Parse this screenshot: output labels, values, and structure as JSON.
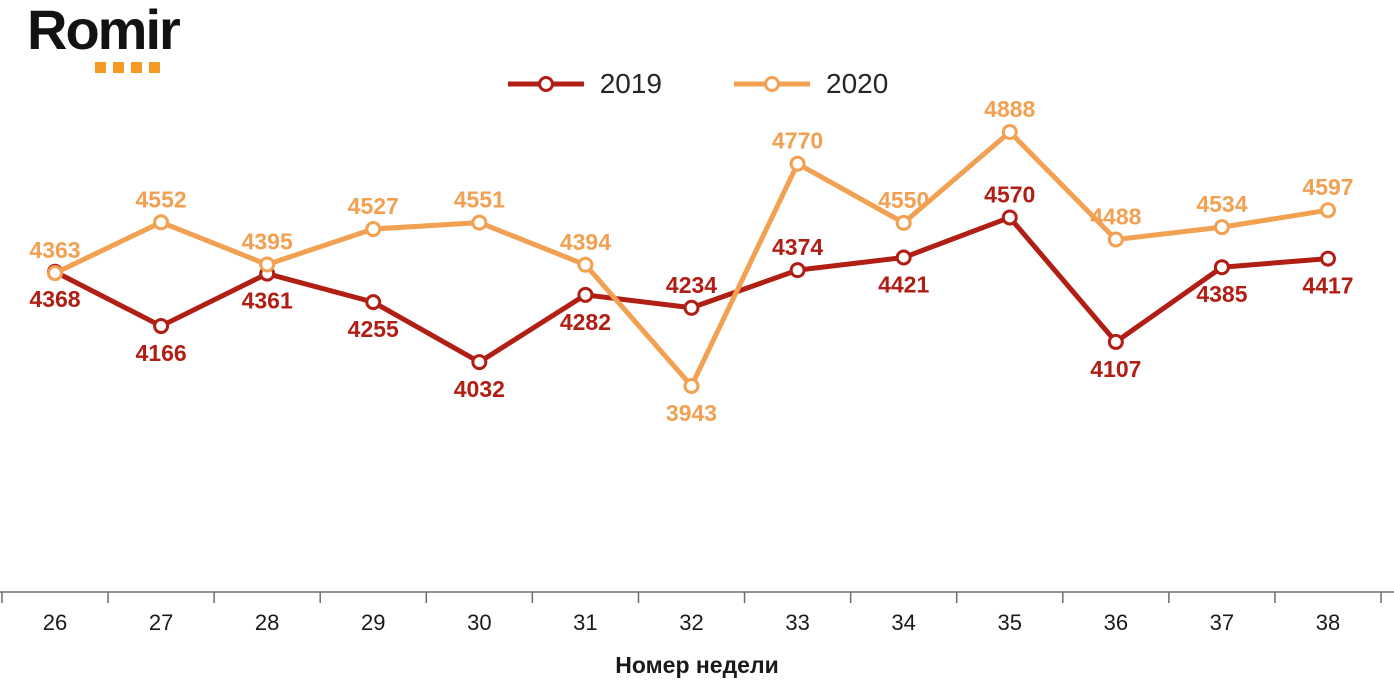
{
  "logo": {
    "text": "Romir",
    "dot_color": "#F59A23",
    "dots": 4
  },
  "chart_data": {
    "type": "line",
    "categories": [
      "26",
      "27",
      "28",
      "29",
      "30",
      "31",
      "32",
      "33",
      "34",
      "35",
      "36",
      "37",
      "38"
    ],
    "series": [
      {
        "name": "2019",
        "color": "#B01E14",
        "values": [
          4368,
          4166,
          4361,
          4255,
          4032,
          4282,
          4234,
          4374,
          4421,
          4570,
          4107,
          4385,
          4417
        ],
        "label_positions": [
          "below",
          "below",
          "below",
          "below",
          "below",
          "below",
          "above",
          "above",
          "below",
          "above",
          "below",
          "below",
          "below"
        ]
      },
      {
        "name": "2020",
        "color": "#F2A052",
        "values": [
          4363,
          4552,
          4395,
          4527,
          4551,
          4394,
          3943,
          4770,
          4550,
          4888,
          4488,
          4534,
          4597
        ],
        "label_positions": [
          "above",
          "above",
          "above",
          "above",
          "above",
          "above",
          "below",
          "above",
          "above",
          "above",
          "above",
          "above",
          "above"
        ]
      }
    ],
    "xlabel": "Номер недели",
    "ylim": [
      3900,
      4950
    ],
    "grid": false,
    "legend_position": "top",
    "marker": "circle-open",
    "axis_color": "#6e6e6e"
  }
}
